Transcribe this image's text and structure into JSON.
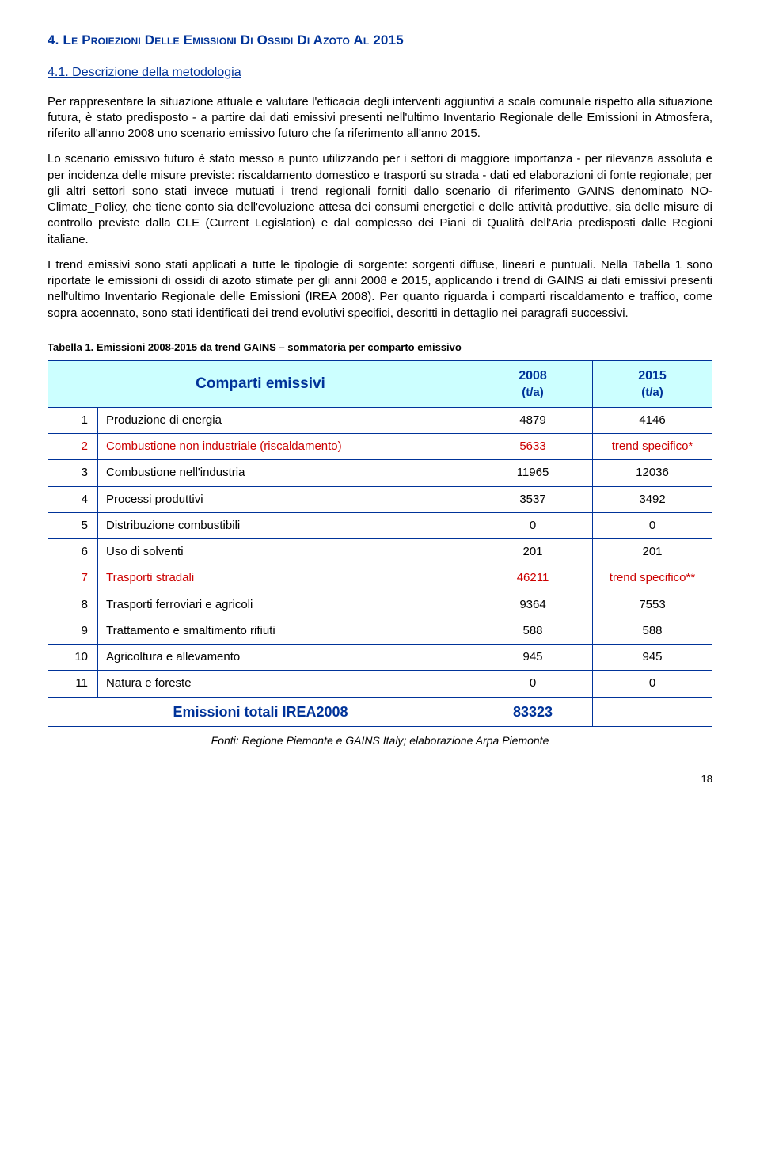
{
  "section_title": "4. Le Proiezioni Delle Emissioni Di Ossidi Di Azoto Al 2015",
  "sub_title": "4.1. Descrizione della metodologia",
  "paragraphs": {
    "p1": "Per rappresentare la situazione attuale e valutare l'efficacia degli interventi aggiuntivi a scala comunale rispetto alla situazione futura, è stato predisposto - a partire dai dati emissivi presenti nell'ultimo Inventario Regionale delle Emissioni in Atmosfera, riferito all'anno 2008 uno scenario emissivo futuro che fa riferimento all'anno 2015.",
    "p2": "Lo scenario emissivo futuro è stato messo a punto utilizzando per i settori di maggiore importanza - per rilevanza assoluta e per incidenza delle misure previste: riscaldamento domestico e trasporti su strada - dati ed elaborazioni di fonte regionale; per gli altri settori sono stati invece mutuati i trend regionali forniti dallo scenario di riferimento GAINS denominato NO-Climate_Policy, che tiene conto sia dell'evoluzione attesa dei consumi energetici e delle attività produttive, sia delle misure di controllo previste dalla CLE (Current Legislation) e dal complesso dei Piani di Qualità dell'Aria predisposti dalle Regioni italiane.",
    "p3": "I trend emissivi sono stati applicati a tutte le tipologie di sorgente: sorgenti diffuse, lineari e puntuali. Nella Tabella 1 sono riportate le emissioni di ossidi di azoto stimate per gli anni 2008 e 2015, applicando i trend di GAINS ai dati emissivi presenti nell'ultimo Inventario Regionale delle Emissioni (IREA 2008). Per quanto riguarda i comparti riscaldamento e traffico, come sopra accennato, sono stati identificati dei trend evolutivi specifici, descritti in dettaglio nei paragrafi successivi."
  },
  "table": {
    "caption": "Tabella 1. Emissioni 2008-2015 da trend GAINS – sommatoria per comparto emissivo",
    "header_label": "Comparti emissivi",
    "header_2008_top": "2008",
    "header_2008_sub": "(t/a)",
    "header_2015_top": "2015",
    "header_2015_sub": "(t/a)",
    "rows": [
      {
        "idx": "1",
        "label": "Produzione di energia",
        "v2008": "4879",
        "v2015": "4146",
        "hl": false
      },
      {
        "idx": "2",
        "label": "Combustione non industriale (riscaldamento)",
        "v2008": "5633",
        "v2015": "trend specifico*",
        "hl": true
      },
      {
        "idx": "3",
        "label": "Combustione nell'industria",
        "v2008": "11965",
        "v2015": "12036",
        "hl": false
      },
      {
        "idx": "4",
        "label": "Processi produttivi",
        "v2008": "3537",
        "v2015": "3492",
        "hl": false
      },
      {
        "idx": "5",
        "label": "Distribuzione combustibili",
        "v2008": "0",
        "v2015": "0",
        "hl": false
      },
      {
        "idx": "6",
        "label": "Uso di solventi",
        "v2008": "201",
        "v2015": "201",
        "hl": false
      },
      {
        "idx": "7",
        "label": "Trasporti stradali",
        "v2008": "46211",
        "v2015": "trend specifico**",
        "hl": true
      },
      {
        "idx": "8",
        "label": "Trasporti ferroviari e agricoli",
        "v2008": "9364",
        "v2015": "7553",
        "hl": false
      },
      {
        "idx": "9",
        "label": "Trattamento e smaltimento rifiuti",
        "v2008": "588",
        "v2015": "588",
        "hl": false
      },
      {
        "idx": "10",
        "label": "Agricoltura e allevamento",
        "v2008": "945",
        "v2015": "945",
        "hl": false
      },
      {
        "idx": "11",
        "label": "Natura e foreste",
        "v2008": "0",
        "v2015": "0",
        "hl": false
      }
    ],
    "total_label": "Emissioni totali IREA2008",
    "total_2008": "83323",
    "total_2015": "",
    "footer_note": "Fonti: Regione Piemonte e GAINS Italy; elaborazione Arpa Piemonte"
  },
  "page_number": "18"
}
